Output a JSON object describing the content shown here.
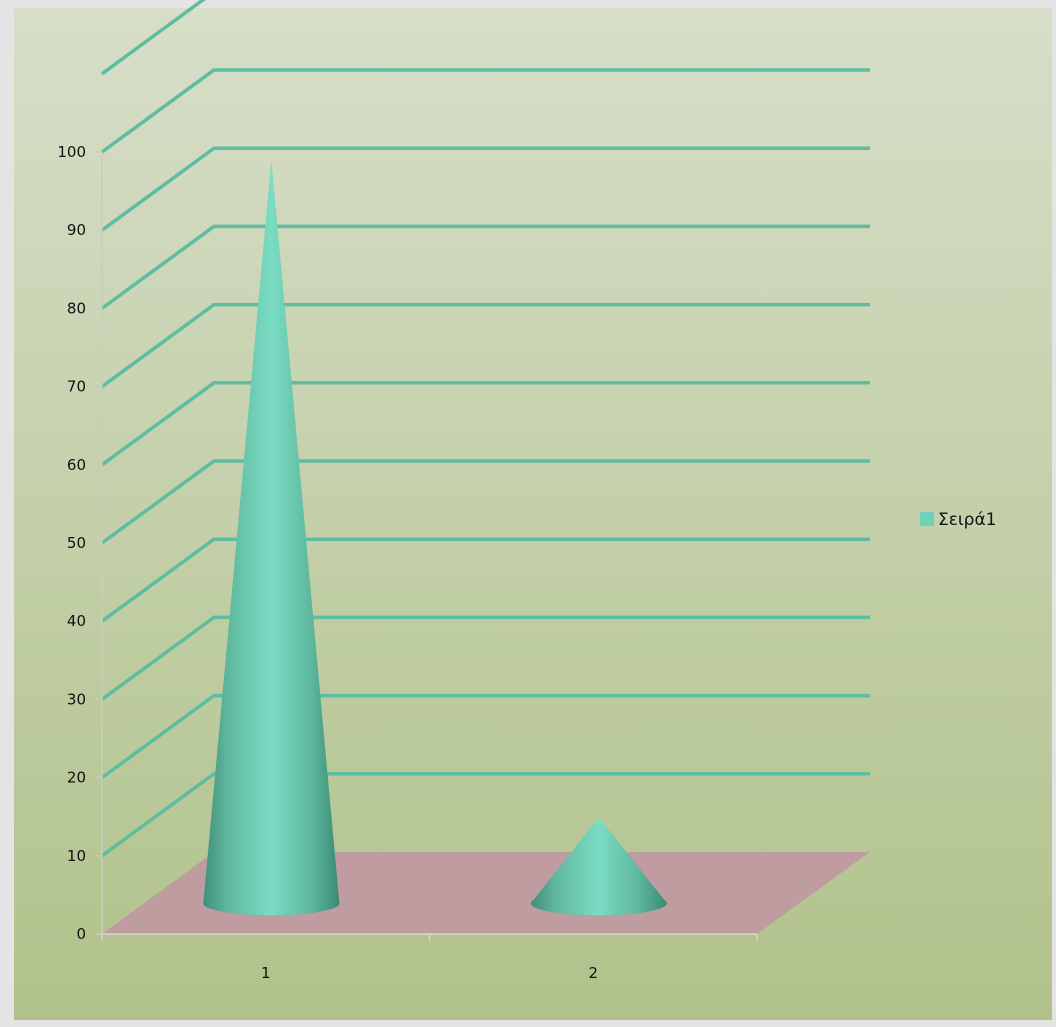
{
  "chart_data": {
    "type": "bar",
    "shape": "3d-cone",
    "categories": [
      "1",
      "2"
    ],
    "series": [
      {
        "name": "Σειρά1",
        "values": [
          95,
          11
        ]
      }
    ],
    "ylim": [
      0,
      110
    ],
    "yticks": [
      0,
      10,
      20,
      30,
      40,
      50,
      60,
      70,
      80,
      90,
      100
    ],
    "grid": true,
    "legend": "right",
    "colors": {
      "series": "#6fd2b8",
      "gridline": "#5ebca0",
      "floor": "#bf9ca0",
      "background_top": "#d7dec9",
      "background_bottom": "#b0c28a"
    }
  }
}
